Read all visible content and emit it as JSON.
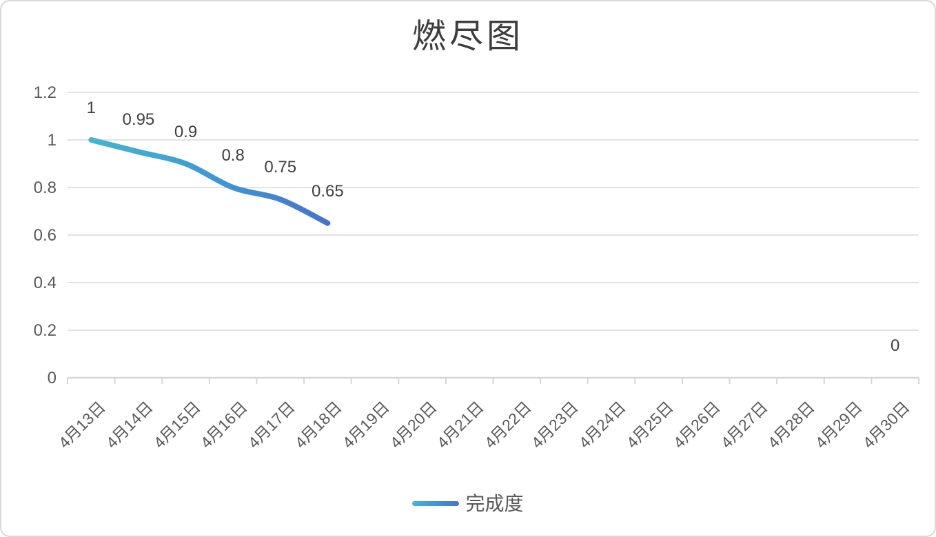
{
  "title": "燃尽图",
  "legend": {
    "label": "完成度"
  },
  "colors": {
    "frame_border": "#d9d9d9",
    "background": "#ffffff",
    "title_text": "#3d3d3d",
    "tick_label": "#595959",
    "data_label": "#3f3f3f",
    "gridline": "#e2e2e2",
    "axis_line": "#d6d6d6",
    "line_start": "#45b6ce",
    "line_mid": "#3e96d4",
    "line_end": "#4674cc"
  },
  "chart_data": {
    "type": "line",
    "title": "燃尽图",
    "xlabel": "",
    "ylabel": "",
    "ylim": [
      0,
      1.2
    ],
    "grid": true,
    "legend_position": "bottom",
    "smooth": true,
    "categories": [
      "4月13日",
      "4月14日",
      "4月15日",
      "4月16日",
      "4月17日",
      "4月18日",
      "4月19日",
      "4月20日",
      "4月21日",
      "4月22日",
      "4月23日",
      "4月24日",
      "4月25日",
      "4月26日",
      "4月27日",
      "4月28日",
      "4月29日",
      "4月30日"
    ],
    "y_ticks": [
      1.2,
      1,
      0.8,
      0.6,
      0.4,
      0.2,
      0
    ],
    "y_tick_labels": [
      "1.2",
      "1",
      "0.8",
      "0.6",
      "0.4",
      "0.2",
      "0"
    ],
    "series": [
      {
        "name": "完成度",
        "values": [
          1,
          0.95,
          0.9,
          0.8,
          0.75,
          0.65,
          null,
          null,
          null,
          null,
          null,
          null,
          null,
          null,
          null,
          null,
          null,
          0
        ],
        "data_labels": [
          "1",
          "0.95",
          "0.9",
          "0.8",
          "0.75",
          "0.65",
          null,
          null,
          null,
          null,
          null,
          null,
          null,
          null,
          null,
          null,
          null,
          "0"
        ]
      }
    ]
  }
}
